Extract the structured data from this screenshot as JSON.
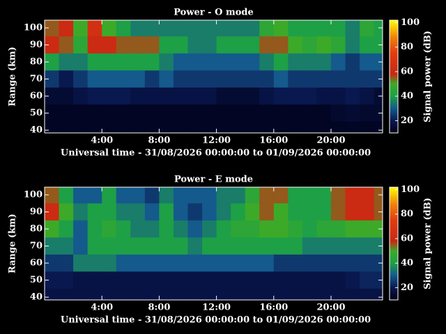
{
  "chart_data": [
    {
      "type": "heatmap",
      "title": "Power - O mode",
      "xlabel": "Universal time - 31/08/2026 00:00:00 to 01/09/2026 00:00:00",
      "ylabel": "Range (km)",
      "colorbar_label": "Signal power (dB)",
      "xlim": [
        0,
        23.6
      ],
      "xticks": [
        {
          "value": 4,
          "label": "4:00"
        },
        {
          "value": 8,
          "label": "8:00"
        },
        {
          "value": 12,
          "label": "12:00"
        },
        {
          "value": 16,
          "label": "16:00"
        },
        {
          "value": 20,
          "label": "20:00"
        }
      ],
      "ylim": [
        38.4,
        104.5
      ],
      "yticks": [
        40,
        50,
        60,
        70,
        80,
        90,
        100
      ],
      "zlim": [
        10,
        102
      ],
      "zticks": [
        20,
        40,
        60,
        80,
        100
      ],
      "x": [
        0.5,
        1.5,
        2.5,
        3.5,
        4.5,
        5.5,
        6.5,
        7.5,
        8.5,
        9.5,
        10.5,
        11.5,
        12.5,
        13.5,
        14.5,
        15.5,
        16.5,
        17.5,
        18.5,
        19.5,
        20.5,
        21.5,
        22.5,
        23.5
      ],
      "y": [
        100,
        90,
        80,
        70,
        60,
        50,
        40
      ],
      "z": [
        [
          55,
          60,
          50,
          65,
          50,
          40,
          35,
          35,
          35,
          35,
          35,
          35,
          35,
          35,
          35,
          45,
          50,
          40,
          40,
          40,
          40,
          35,
          45,
          40
        ],
        [
          60,
          55,
          45,
          60,
          60,
          55,
          55,
          55,
          40,
          40,
          35,
          35,
          40,
          40,
          40,
          55,
          55,
          50,
          45,
          50,
          45,
          35,
          40,
          40
        ],
        [
          40,
          35,
          35,
          40,
          40,
          40,
          40,
          40,
          35,
          30,
          30,
          30,
          30,
          30,
          30,
          35,
          40,
          35,
          35,
          35,
          30,
          25,
          30,
          30
        ],
        [
          25,
          20,
          25,
          30,
          30,
          30,
          30,
          25,
          30,
          25,
          25,
          25,
          25,
          25,
          25,
          25,
          30,
          25,
          25,
          25,
          25,
          25,
          25,
          25
        ],
        [
          15,
          15,
          18,
          20,
          20,
          20,
          18,
          18,
          18,
          18,
          18,
          18,
          15,
          15,
          15,
          18,
          20,
          20,
          20,
          18,
          18,
          20,
          18,
          15
        ],
        [
          12,
          12,
          12,
          12,
          12,
          12,
          12,
          12,
          12,
          12,
          12,
          12,
          12,
          12,
          12,
          12,
          12,
          12,
          12,
          12,
          14,
          15,
          14,
          14
        ],
        [
          12,
          12,
          12,
          12,
          12,
          12,
          12,
          12,
          12,
          12,
          12,
          12,
          12,
          12,
          12,
          12,
          12,
          12,
          12,
          12,
          12,
          12,
          12,
          12
        ]
      ]
    },
    {
      "type": "heatmap",
      "title": "Power - E mode",
      "xlabel": "Universal time - 31/08/2026 00:00:00 to 01/09/2026 00:00:00",
      "ylabel": "Range (km)",
      "colorbar_label": "Signal power (dB)",
      "xlim": [
        0,
        23.6
      ],
      "xticks": [
        {
          "value": 4,
          "label": "4:00"
        },
        {
          "value": 8,
          "label": "8:00"
        },
        {
          "value": 12,
          "label": "12:00"
        },
        {
          "value": 16,
          "label": "16:00"
        },
        {
          "value": 20,
          "label": "20:00"
        }
      ],
      "ylim": [
        38.4,
        104.5
      ],
      "yticks": [
        40,
        50,
        60,
        70,
        80,
        90,
        100
      ],
      "zlim": [
        10,
        102
      ],
      "zticks": [
        20,
        40,
        60,
        80,
        100
      ],
      "x": [
        0.5,
        1.5,
        2.5,
        3.5,
        4.5,
        5.5,
        6.5,
        7.5,
        8.5,
        9.5,
        10.5,
        11.5,
        12.5,
        13.5,
        14.5,
        15.5,
        16.5,
        17.5,
        18.5,
        19.5,
        20.5,
        21.5,
        22.5,
        23.5
      ],
      "y": [
        100,
        90,
        80,
        70,
        60,
        50,
        40
      ],
      "z": [
        [
          55,
          40,
          30,
          30,
          40,
          30,
          30,
          25,
          35,
          30,
          30,
          30,
          35,
          35,
          45,
          55,
          55,
          40,
          40,
          40,
          55,
          60,
          60,
          55
        ],
        [
          60,
          50,
          35,
          40,
          40,
          35,
          35,
          30,
          40,
          30,
          25,
          30,
          35,
          40,
          50,
          55,
          50,
          40,
          40,
          40,
          55,
          60,
          60,
          55
        ],
        [
          50,
          40,
          30,
          40,
          45,
          40,
          35,
          35,
          40,
          35,
          30,
          35,
          40,
          45,
          45,
          50,
          50,
          45,
          40,
          45,
          45,
          50,
          50,
          50
        ],
        [
          35,
          35,
          30,
          40,
          40,
          40,
          40,
          40,
          40,
          40,
          35,
          40,
          40,
          40,
          40,
          40,
          40,
          40,
          35,
          35,
          35,
          35,
          35,
          35
        ],
        [
          25,
          25,
          35,
          35,
          35,
          30,
          30,
          30,
          30,
          30,
          30,
          30,
          30,
          30,
          30,
          30,
          25,
          25,
          25,
          25,
          25,
          25,
          25,
          25
        ],
        [
          20,
          20,
          18,
          18,
          18,
          18,
          18,
          18,
          18,
          18,
          18,
          18,
          18,
          18,
          18,
          18,
          18,
          18,
          18,
          18,
          18,
          20,
          22,
          22
        ],
        [
          18,
          18,
          18,
          18,
          18,
          18,
          18,
          18,
          18,
          18,
          18,
          18,
          18,
          18,
          18,
          18,
          18,
          18,
          18,
          18,
          18,
          18,
          18,
          18
        ]
      ]
    }
  ]
}
